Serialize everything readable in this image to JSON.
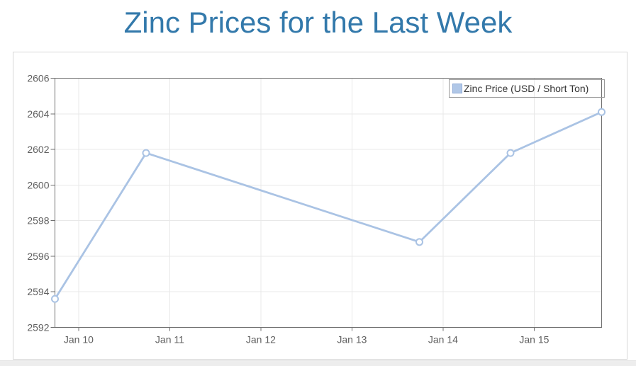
{
  "page": {
    "title": "Zinc Prices for the Last Week"
  },
  "chart_data": {
    "type": "line",
    "title": "Zinc Prices for the Last Week",
    "legend": {
      "label": "Zinc Price (USD / Short Ton)",
      "position": "top-right",
      "swatch_icon": "filled-square"
    },
    "grid": true,
    "x_axis": {
      "label": "",
      "range_days": [
        -0.26,
        5.74
      ],
      "ticks": [
        {
          "label": "Jan 10",
          "day": 0
        },
        {
          "label": "Jan 11",
          "day": 1
        },
        {
          "label": "Jan 12",
          "day": 2
        },
        {
          "label": "Jan 13",
          "day": 3
        },
        {
          "label": "Jan 14",
          "day": 4
        },
        {
          "label": "Jan 15",
          "day": 5
        }
      ]
    },
    "y_axis": {
      "label": "",
      "min": 2592,
      "max": 2606,
      "tick_step": 2,
      "tick_labels": [
        "2592",
        "2594",
        "2596",
        "2598",
        "2600",
        "2602",
        "2604",
        "2606"
      ]
    },
    "series": [
      {
        "name": "Zinc Price (USD / Short Ton)",
        "points": [
          {
            "x": "Jan 9",
            "day": -0.26,
            "value": 2593.6
          },
          {
            "x": "Jan 10",
            "day": 0.74,
            "value": 2601.8
          },
          {
            "x": "Jan 13",
            "day": 3.74,
            "value": 2596.8
          },
          {
            "x": "Jan 14",
            "day": 4.74,
            "value": 2601.8
          },
          {
            "x": "Jan 15",
            "day": 5.74,
            "value": 2604.1
          }
        ]
      }
    ]
  },
  "colors": {
    "title_text": "#3379ab",
    "line": "#aac3e4",
    "marker_fill": "#ffffff",
    "swatch_fill": "#b0c7e7",
    "swatch_border": "#91acd8",
    "axis_line": "#707070",
    "grid_line": "#e8e8e8",
    "tick_text": "#606060",
    "legend_border": "#9a9a9a",
    "legend_text": "#333333",
    "panel_border": "#d8d8d8",
    "footer_strip": "#ededed"
  }
}
